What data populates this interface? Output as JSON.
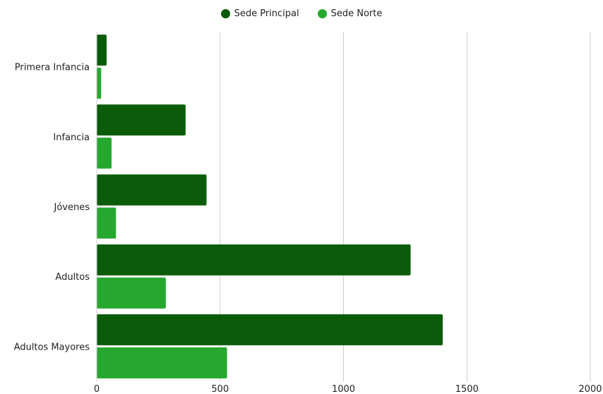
{
  "chart_data": {
    "type": "bar",
    "orientation": "horizontal",
    "categories": [
      "Primera Infancia",
      "Infancia",
      "Jóvenes",
      "Adultos",
      "Adultos Mayores"
    ],
    "series": [
      {
        "name": "Sede Principal",
        "color": "#0a5c0a",
        "values": [
          40,
          360,
          445,
          1272,
          1402
        ]
      },
      {
        "name": "Sede Norte",
        "color": "#26a82f",
        "values": [
          18,
          60,
          78,
          280,
          528
        ]
      }
    ],
    "xlim": [
      0,
      2000
    ],
    "xticks": [
      0,
      500,
      1000,
      1500,
      2000
    ],
    "title": "",
    "xlabel": "",
    "ylabel": "",
    "grid": "vertical",
    "legend_position": "top-center"
  }
}
